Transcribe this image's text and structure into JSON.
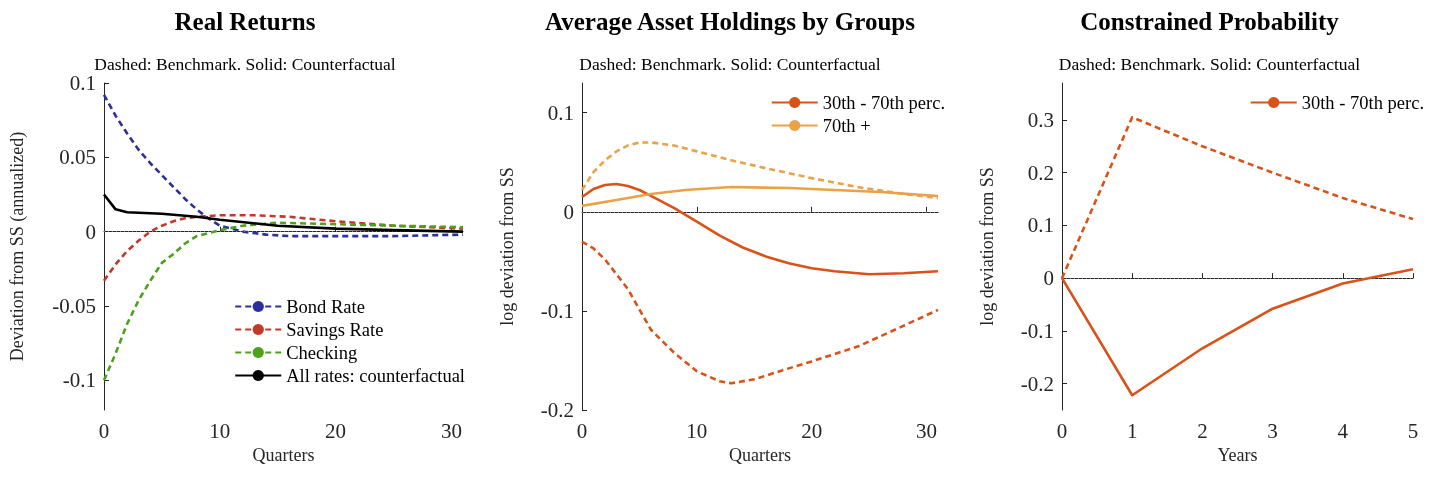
{
  "chart_data": [
    {
      "type": "line",
      "title": "Real Returns",
      "subtitle": "Dashed: Benchmark. Solid: Counterfactual",
      "xlabel": "Quarters",
      "ylabel": "Deviation from SS (annualized)",
      "xlim": [
        0,
        31
      ],
      "xticks": [
        0,
        10,
        20,
        30
      ],
      "ylim": [
        -0.12,
        0.1
      ],
      "yticks": [
        -0.1,
        -0.05,
        0,
        0.05,
        0.1
      ],
      "grid": false,
      "legend": "bottom right",
      "ref_lines": [
        {
          "axis": "y",
          "value": 0,
          "color": "#808080",
          "line_style": "dotted"
        }
      ],
      "series": [
        {
          "name": "Bond Rate",
          "color": "#2b2f9e",
          "line_style": "dashed",
          "x": [
            0,
            1,
            2,
            3,
            4,
            5,
            6,
            7,
            8,
            9,
            10,
            12,
            14,
            16,
            20,
            25,
            31
          ],
          "values": [
            0.092,
            0.078,
            0.066,
            0.055,
            0.046,
            0.038,
            0.03,
            0.022,
            0.015,
            0.009,
            0.004,
            0.0,
            -0.002,
            -0.003,
            -0.003,
            -0.003,
            -0.002
          ]
        },
        {
          "name": "Savings Rate",
          "color": "#c0392b",
          "line_style": "dashed",
          "x": [
            0,
            1,
            2,
            3,
            4,
            5,
            6,
            7,
            8,
            10,
            13,
            16,
            20,
            25,
            31
          ],
          "values": [
            -0.033,
            -0.022,
            -0.013,
            -0.006,
            0.0,
            0.004,
            0.007,
            0.009,
            0.01,
            0.011,
            0.011,
            0.01,
            0.007,
            0.004,
            0.002
          ]
        },
        {
          "name": "Checking",
          "color": "#4ca21a",
          "line_style": "dashed",
          "x": [
            0,
            1,
            2,
            3,
            4,
            5,
            6,
            7,
            8,
            9,
            10,
            12,
            15,
            20,
            25,
            31
          ],
          "values": [
            -0.1,
            -0.082,
            -0.062,
            -0.046,
            -0.033,
            -0.021,
            -0.015,
            -0.008,
            -0.003,
            -0.001,
            0.001,
            0.004,
            0.006,
            0.005,
            0.004,
            0.003
          ]
        },
        {
          "name": "All rates: counterfactual",
          "color": "#000000",
          "line_style": "solid",
          "x": [
            0,
            1,
            2,
            5,
            8,
            10,
            15,
            20,
            25,
            31
          ],
          "values": [
            0.025,
            0.015,
            0.013,
            0.012,
            0.01,
            0.008,
            0.004,
            0.002,
            0.001,
            0.0
          ]
        }
      ]
    },
    {
      "type": "line",
      "title": "Average Asset Holdings by Groups",
      "subtitle": "Dashed: Benchmark. Solid: Counterfactual",
      "xlabel": "Quarters",
      "ylabel": "log deviation from SS",
      "xlim": [
        0,
        31
      ],
      "xticks": [
        0,
        10,
        20,
        30
      ],
      "ylim": [
        -0.2,
        0.13
      ],
      "yticks": [
        -0.2,
        -0.1,
        0,
        0.1
      ],
      "grid": false,
      "legend": "top right",
      "ref_lines": [
        {
          "axis": "y",
          "value": 0,
          "color": "#808080",
          "line_style": "dotted"
        }
      ],
      "series": [
        {
          "name": "30th - 70th perc.",
          "color": "#d95319",
          "line_style": "solid",
          "x": [
            0,
            1,
            2,
            3,
            4,
            5,
            6,
            8,
            10,
            12,
            14,
            16,
            18,
            20,
            22,
            25,
            28,
            31
          ],
          "values": [
            0.015,
            0.023,
            0.027,
            0.028,
            0.026,
            0.022,
            0.016,
            0.004,
            -0.01,
            -0.024,
            -0.036,
            -0.045,
            -0.052,
            -0.057,
            -0.06,
            -0.063,
            -0.062,
            -0.06
          ]
        },
        {
          "name": "70th +",
          "color": "#e9a24a",
          "line_style": "solid",
          "x": [
            0,
            3,
            6,
            9,
            13,
            18,
            22,
            26,
            31
          ],
          "values": [
            0.006,
            0.012,
            0.018,
            0.022,
            0.025,
            0.024,
            0.022,
            0.02,
            0.016
          ]
        },
        {
          "color": "#e9a24a",
          "line_style": "dashed",
          "x": [
            0,
            1,
            2,
            3,
            4,
            5,
            6,
            8,
            10,
            13,
            16,
            20,
            24,
            28,
            31
          ],
          "values": [
            0.022,
            0.04,
            0.052,
            0.061,
            0.067,
            0.07,
            0.07,
            0.067,
            0.061,
            0.052,
            0.044,
            0.034,
            0.025,
            0.018,
            0.014
          ]
        },
        {
          "color": "#d95319",
          "line_style": "dashed",
          "x": [
            0,
            1,
            2,
            4,
            6,
            8,
            10,
            12,
            13,
            15,
            18,
            20,
            24,
            28,
            31
          ],
          "values": [
            -0.03,
            -0.037,
            -0.048,
            -0.078,
            -0.119,
            -0.142,
            -0.161,
            -0.171,
            -0.173,
            -0.169,
            -0.158,
            -0.151,
            -0.136,
            -0.115,
            -0.099
          ]
        }
      ]
    },
    {
      "type": "line",
      "title": "Constrained Probability",
      "subtitle": "Dashed: Benchmark. Solid: Counterfactual",
      "xlabel": "Years",
      "ylabel": "log deviation from SS",
      "xlim": [
        0,
        5
      ],
      "xticks": [
        0,
        1,
        2,
        3,
        4,
        5
      ],
      "ylim": [
        -0.25,
        0.37
      ],
      "yticks": [
        -0.2,
        -0.1,
        0,
        0.1,
        0.2,
        0.3
      ],
      "grid": false,
      "legend": "top right",
      "ref_lines": [
        {
          "axis": "y",
          "value": 0,
          "color": "#808080",
          "line_style": "dotted"
        }
      ],
      "series": [
        {
          "name": "30th - 70th perc.",
          "color": "#d95319",
          "line_style": "solid",
          "x": [
            0,
            1,
            2,
            3,
            4,
            5
          ],
          "values": [
            0,
            -0.222,
            -0.133,
            -0.058,
            -0.01,
            0.017
          ]
        },
        {
          "color": "#d95319",
          "line_style": "dashed",
          "x": [
            0,
            1,
            2,
            3,
            4,
            5
          ],
          "values": [
            0,
            0.305,
            0.25,
            0.2,
            0.152,
            0.112
          ]
        }
      ]
    }
  ]
}
